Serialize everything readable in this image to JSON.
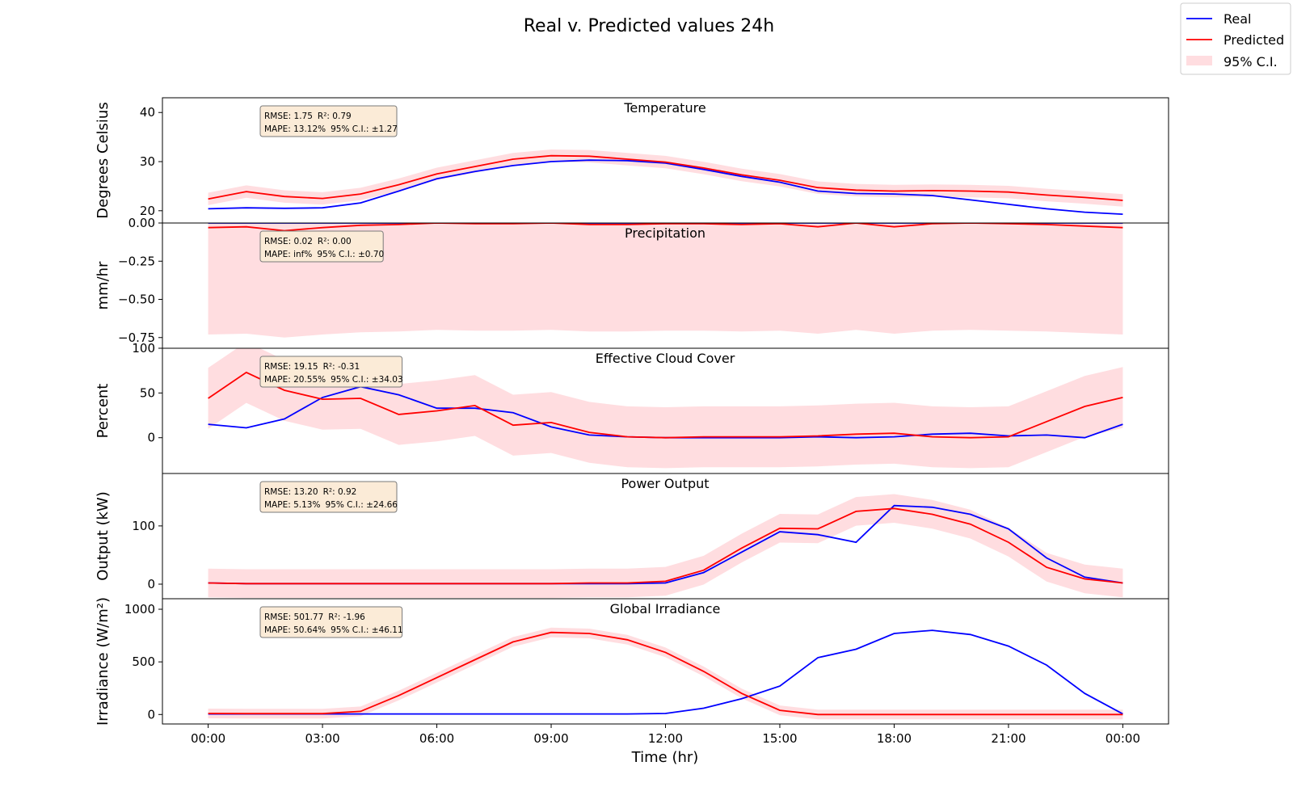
{
  "chart_data": {
    "type": "line",
    "title": "Real v. Predicted values 24h",
    "xlabel": "Time (hr)",
    "x_ticks": [
      "00:00",
      "03:00",
      "06:00",
      "09:00",
      "12:00",
      "15:00",
      "18:00",
      "21:00",
      "00:00"
    ],
    "x_range_hours": [
      -1.2,
      25.2
    ],
    "legend": {
      "placement": "top-right",
      "entries": [
        "Real",
        "Predicted",
        "95% C.I."
      ]
    },
    "colors": {
      "real": "#0000ff",
      "predicted": "#ff0000",
      "ci": "#ffdde0",
      "stat_box": "#fbebd7",
      "stat_border": "#7a7a7a"
    },
    "panels": [
      {
        "title": "Temperature",
        "ylabel": "Degrees Celsius",
        "ylim": [
          17.5,
          43
        ],
        "yticks": [
          20,
          30,
          40
        ],
        "ytick_labels": [
          "20",
          "30",
          "40"
        ],
        "stats": {
          "rmse": "RMSE: 1.75",
          "r2": "R²: 0.79",
          "mape": "MAPE: 13.12%",
          "ci": "95% C.I.: ±1.27"
        },
        "real": [
          20.4,
          20.6,
          20.5,
          20.6,
          21.6,
          24.0,
          26.5,
          28.0,
          29.2,
          30.0,
          30.3,
          30.2,
          29.7,
          28.4,
          27.0,
          25.8,
          24.0,
          23.5,
          23.4,
          23.1,
          22.2,
          21.3,
          20.4,
          19.7,
          19.3
        ],
        "predicted": [
          22.4,
          23.9,
          22.9,
          22.5,
          23.4,
          25.3,
          27.5,
          29.0,
          30.5,
          31.2,
          31.1,
          30.5,
          29.9,
          28.7,
          27.3,
          26.2,
          24.7,
          24.2,
          24.0,
          24.1,
          24.0,
          23.8,
          23.2,
          22.7,
          22.1
        ],
        "ci_half_width": 1.27
      },
      {
        "title": "Precipitation",
        "ylabel": "mm/hr",
        "ylim": [
          -0.82,
          0.0
        ],
        "yticks": [
          0.0,
          -0.25,
          -0.5,
          -0.75
        ],
        "ytick_labels": [
          "0.00",
          "−0.25",
          "−0.50",
          "−0.75"
        ],
        "stats": {
          "rmse": "RMSE: 0.02",
          "r2": "R²: 0.00",
          "mape": "MAPE: inf%",
          "ci": "95% C.I.: ±0.70"
        },
        "real": [
          0,
          0,
          0,
          0,
          0,
          0,
          0,
          0,
          0,
          0,
          0,
          0,
          0,
          0,
          0,
          0,
          0,
          0,
          0,
          0,
          0,
          0,
          0,
          0,
          0
        ],
        "predicted": [
          -0.03,
          -0.025,
          -0.05,
          -0.03,
          -0.015,
          -0.01,
          0.0,
          -0.005,
          -0.005,
          0.0,
          -0.01,
          -0.01,
          -0.005,
          -0.005,
          -0.01,
          -0.005,
          -0.025,
          0.0,
          -0.025,
          -0.005,
          0.0,
          -0.005,
          -0.01,
          -0.02,
          -0.03
        ],
        "ci_half_width": 0.7
      },
      {
        "title": "Effective Cloud Cover",
        "ylabel": "Percent",
        "ylim": [
          -40,
          100
        ],
        "yticks": [
          0,
          50,
          100
        ],
        "ytick_labels": [
          "0",
          "50",
          "100"
        ],
        "stats": {
          "rmse": "RMSE: 19.15",
          "r2": "R²: -0.31",
          "mape": "MAPE: 20.55%",
          "ci": "95% C.I.: ±34.03"
        },
        "real": [
          15,
          11,
          21,
          45,
          57,
          48,
          33,
          33,
          28,
          12,
          3,
          1,
          0,
          0,
          0,
          0,
          1,
          0,
          1,
          4,
          5,
          2,
          3,
          0,
          15
        ],
        "predicted": [
          44,
          73,
          53,
          43,
          44,
          26,
          30,
          36,
          14,
          17,
          6,
          1,
          0,
          1,
          1,
          1,
          2,
          4,
          5,
          1,
          0,
          1,
          18,
          35,
          45
        ],
        "ci_half_width": 34.03
      },
      {
        "title": "Power Output",
        "ylabel": "Output (kW)",
        "ylim": [
          -25,
          190
        ],
        "yticks": [
          0,
          100
        ],
        "ytick_labels": [
          "0",
          "100"
        ],
        "stats": {
          "rmse": "RMSE: 13.20",
          "r2": "R²: 0.92",
          "mape": "MAPE: 5.13%",
          "ci": "95% C.I.: ±24.66"
        },
        "real": [
          2,
          1,
          1,
          1,
          1,
          1,
          1,
          1,
          1,
          1,
          1,
          1,
          2,
          20,
          55,
          90,
          85,
          72,
          135,
          132,
          120,
          95,
          45,
          12,
          2
        ],
        "predicted": [
          2,
          1,
          1,
          1,
          1,
          1,
          1,
          1,
          1,
          1,
          2,
          2,
          5,
          24,
          62,
          96,
          95,
          125,
          130,
          120,
          103,
          72,
          29,
          9,
          2
        ],
        "ci_half_width": 24.66
      },
      {
        "title": "Global Irradiance",
        "ylabel": "Irradiance (W/m²)",
        "ylim": [
          -90,
          1100
        ],
        "yticks": [
          0,
          500,
          1000
        ],
        "ytick_labels": [
          "0",
          "500",
          "1000"
        ],
        "stats": {
          "rmse": "RMSE: 501.77",
          "r2": "R²: -1.96",
          "mape": "MAPE: 50.64%",
          "ci": "95% C.I.: ±46.11"
        },
        "real": [
          5,
          5,
          5,
          5,
          5,
          5,
          5,
          5,
          5,
          5,
          5,
          5,
          10,
          60,
          150,
          270,
          540,
          620,
          770,
          800,
          760,
          650,
          470,
          200,
          5
        ],
        "predicted": [
          10,
          8,
          8,
          8,
          30,
          180,
          350,
          520,
          690,
          780,
          770,
          710,
          590,
          410,
          200,
          40,
          0,
          0,
          0,
          0,
          0,
          0,
          0,
          0,
          0
        ],
        "ci_half_width": 46.11
      }
    ]
  }
}
